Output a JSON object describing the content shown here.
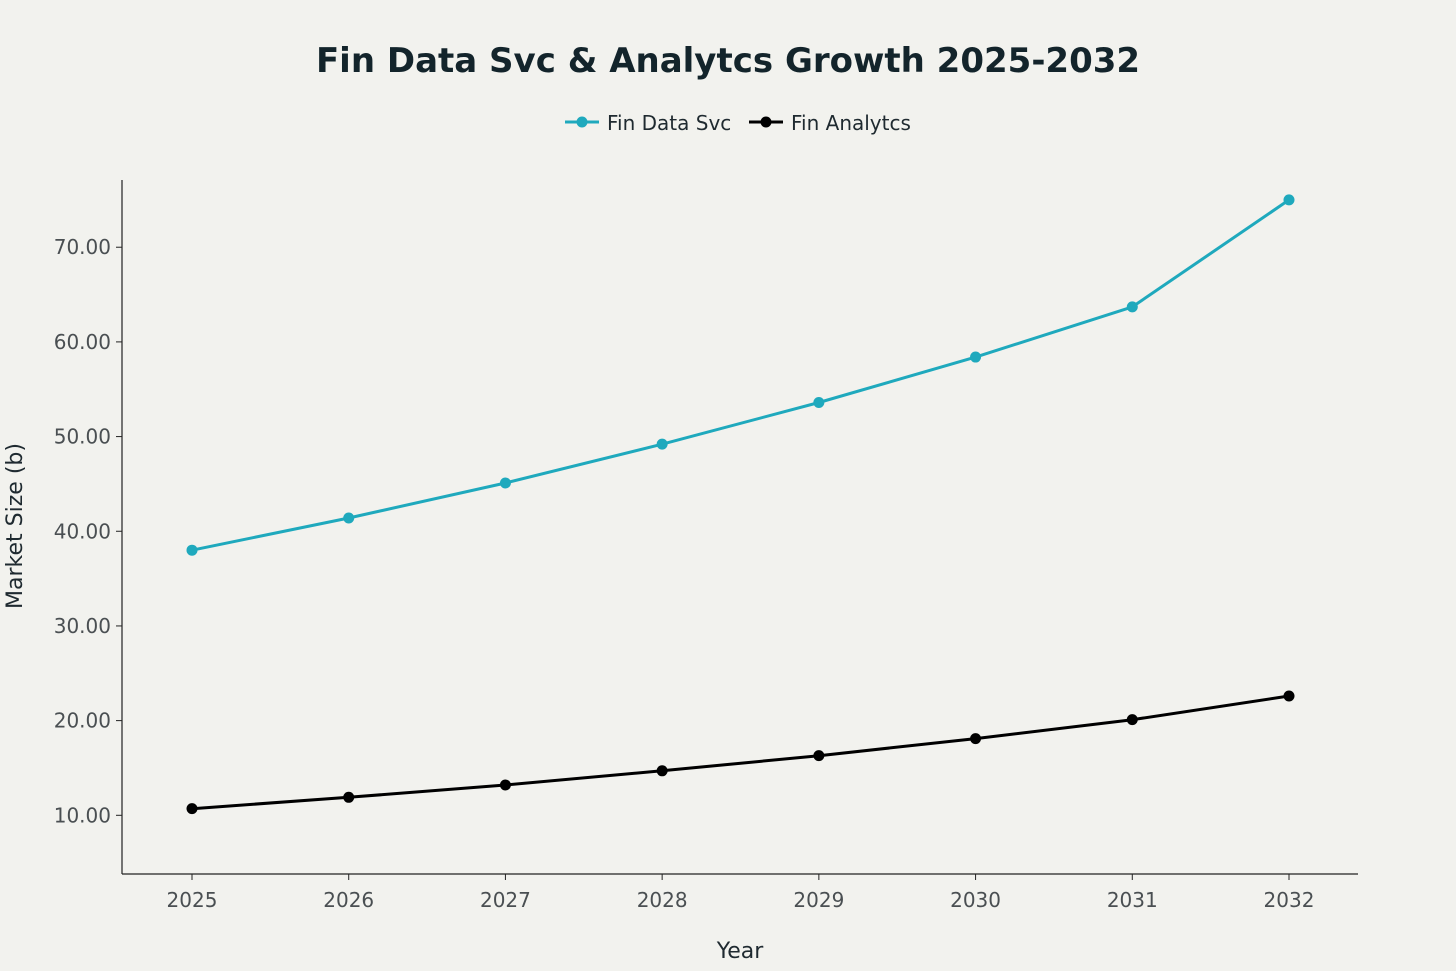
{
  "chart_data": {
    "type": "line",
    "title": "Fin Data Svc & Analytcs Growth 2025-2032",
    "xlabel": "Year",
    "ylabel": "Market Size (b)",
    "categories": [
      "2025",
      "2026",
      "2027",
      "2028",
      "2029",
      "2030",
      "2031",
      "2032"
    ],
    "y_ticks": [
      "10.00",
      "20.00",
      "30.00",
      "40.00",
      "50.00",
      "60.00",
      "70.00"
    ],
    "ylim": [
      3.8,
      77.1
    ],
    "grid": false,
    "legend_position": "top-center",
    "series": [
      {
        "name": "Fin Data Svc",
        "color": "#1fa9bd",
        "values": [
          38.0,
          41.4,
          45.1,
          49.2,
          53.6,
          58.4,
          63.7,
          75.0
        ]
      },
      {
        "name": "Fin Analytcs",
        "color": "#000000",
        "values": [
          10.7,
          11.9,
          13.2,
          14.7,
          16.3,
          18.1,
          20.1,
          22.6
        ]
      }
    ]
  }
}
